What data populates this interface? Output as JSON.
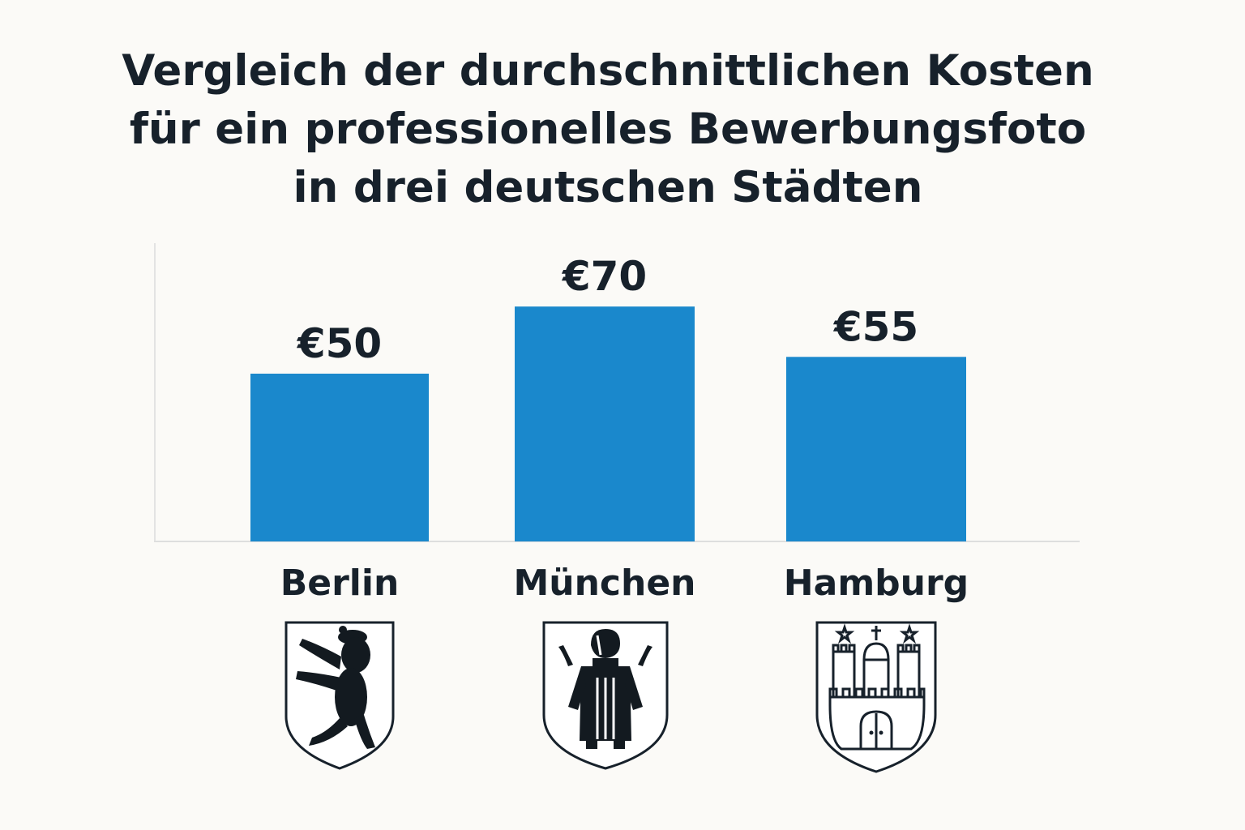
{
  "chart_data": {
    "type": "bar",
    "title_lines": [
      "Vergleich der durchschnittlichen Kosten",
      "für ein professionelles Bewerbungsfoto",
      "in drei deutschen Städten"
    ],
    "categories": [
      "Berlin",
      "München",
      "Hamburg"
    ],
    "values": [
      50,
      70,
      55
    ],
    "value_labels": [
      "€50",
      "€70",
      "€55"
    ],
    "currency": "€",
    "xlabel": "",
    "ylabel": "",
    "ylim": [
      0,
      89
    ],
    "grid": false,
    "legend": "none",
    "bar_color": "#1a88cc",
    "crests": [
      "berlin-bear-crest-icon",
      "munich-monk-crest-icon",
      "hamburg-castle-crest-icon"
    ]
  }
}
